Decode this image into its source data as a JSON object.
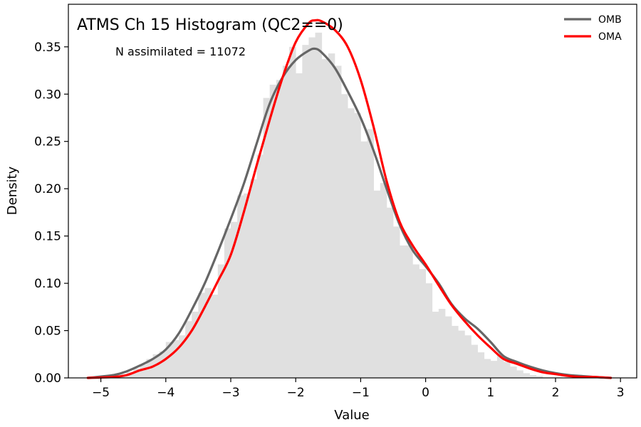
{
  "chart_data": {
    "type": "histogram",
    "title": "ATMS Ch 15 Histogram (QC2==0)",
    "annotation": "N assimilated = 11072",
    "xlabel": "Value",
    "ylabel": "Density",
    "xlim": [
      -5.5,
      3.25
    ],
    "ylim": [
      0,
      0.395
    ],
    "xticks": [
      -5,
      -4,
      -3,
      -2,
      -1,
      0,
      1,
      2,
      3
    ],
    "xtick_labels": [
      "−5",
      "−4",
      "−3",
      "−2",
      "−1",
      "0",
      "1",
      "2",
      "3"
    ],
    "yticks": [
      0,
      0.05,
      0.1,
      0.15,
      0.2,
      0.25,
      0.3,
      0.35
    ],
    "ytick_labels": [
      "0.00",
      "0.05",
      "0.10",
      "0.15",
      "0.20",
      "0.25",
      "0.30",
      "0.35"
    ],
    "grid": false,
    "legend_position": "top-right",
    "colors": {
      "histogram": "#e0e0e0",
      "omb": "#666666",
      "oma": "#ff0000"
    },
    "histogram": {
      "bin_width": 0.1,
      "bin_start": -4.8,
      "densities": [
        0.002,
        0.004,
        0.006,
        0.01,
        0.014,
        0.02,
        0.025,
        0.028,
        0.038,
        0.04,
        0.045,
        0.06,
        0.07,
        0.09,
        0.095,
        0.088,
        0.12,
        0.158,
        0.165,
        0.193,
        0.195,
        0.21,
        0.236,
        0.296,
        0.31,
        0.315,
        0.33,
        0.35,
        0.322,
        0.352,
        0.36,
        0.365,
        0.337,
        0.343,
        0.33,
        0.3,
        0.285,
        0.28,
        0.25,
        0.263,
        0.198,
        0.206,
        0.18,
        0.16,
        0.14,
        0.14,
        0.12,
        0.115,
        0.1,
        0.07,
        0.073,
        0.065,
        0.055,
        0.05,
        0.045,
        0.035,
        0.027,
        0.02,
        0.018,
        0.025,
        0.017,
        0.012,
        0.008,
        0.005,
        0.003,
        0.002
      ]
    },
    "series": [
      {
        "name": "OMB",
        "x": [
          -5.2,
          -4.8,
          -4.6,
          -4.4,
          -4.2,
          -4.0,
          -3.8,
          -3.6,
          -3.4,
          -3.2,
          -3.0,
          -2.8,
          -2.6,
          -2.4,
          -2.2,
          -2.0,
          -1.8,
          -1.7,
          -1.6,
          -1.4,
          -1.2,
          -1.0,
          -0.8,
          -0.6,
          -0.4,
          -0.2,
          0.0,
          0.2,
          0.4,
          0.6,
          0.8,
          1.0,
          1.2,
          1.4,
          1.6,
          1.8,
          2.0,
          2.2,
          2.4,
          2.6,
          2.85
        ],
        "y": [
          0.0,
          0.003,
          0.007,
          0.013,
          0.02,
          0.03,
          0.047,
          0.072,
          0.1,
          0.133,
          0.168,
          0.205,
          0.248,
          0.29,
          0.318,
          0.336,
          0.346,
          0.348,
          0.344,
          0.328,
          0.303,
          0.275,
          0.24,
          0.2,
          0.162,
          0.135,
          0.118,
          0.1,
          0.078,
          0.063,
          0.052,
          0.038,
          0.023,
          0.017,
          0.012,
          0.008,
          0.005,
          0.003,
          0.002,
          0.001,
          0.0
        ]
      },
      {
        "name": "OMA",
        "x": [
          -5.2,
          -4.8,
          -4.6,
          -4.4,
          -4.2,
          -4.0,
          -3.8,
          -3.6,
          -3.4,
          -3.2,
          -3.0,
          -2.8,
          -2.6,
          -2.4,
          -2.2,
          -2.0,
          -1.8,
          -1.7,
          -1.6,
          -1.4,
          -1.2,
          -1.0,
          -0.8,
          -0.6,
          -0.4,
          -0.2,
          0.0,
          0.2,
          0.4,
          0.6,
          0.8,
          1.0,
          1.2,
          1.4,
          1.6,
          1.8,
          2.0,
          2.2,
          2.4,
          2.6,
          2.85
        ],
        "y": [
          0.0,
          0.001,
          0.003,
          0.008,
          0.012,
          0.02,
          0.032,
          0.05,
          0.075,
          0.102,
          0.13,
          0.175,
          0.225,
          0.273,
          0.318,
          0.355,
          0.375,
          0.378,
          0.377,
          0.368,
          0.35,
          0.315,
          0.265,
          0.208,
          0.165,
          0.14,
          0.12,
          0.098,
          0.077,
          0.06,
          0.045,
          0.032,
          0.02,
          0.015,
          0.01,
          0.006,
          0.004,
          0.002,
          0.001,
          0.001,
          0.0
        ]
      }
    ]
  }
}
